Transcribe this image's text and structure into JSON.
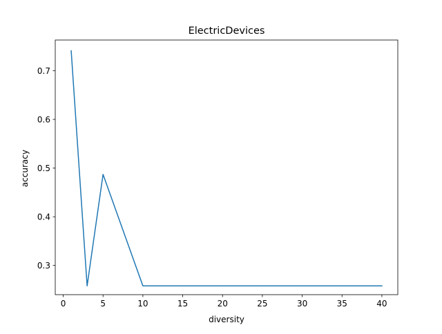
{
  "chart_data": {
    "type": "line",
    "title": "ElectricDevices",
    "xlabel": "diversity",
    "ylabel": "accuracy",
    "xlim": [
      -1,
      42
    ],
    "ylim": [
      0.24,
      0.763
    ],
    "x_ticks": [
      0,
      5,
      10,
      15,
      20,
      25,
      30,
      35,
      40
    ],
    "y_ticks": [
      0.3,
      0.4,
      0.5,
      0.6,
      0.7
    ],
    "grid": false,
    "legend": "none",
    "series": [
      {
        "color": "#1f77b4",
        "x": [
          1,
          3,
          5,
          10,
          40
        ],
        "y": [
          0.741,
          0.258,
          0.487,
          0.258,
          0.258
        ]
      }
    ]
  }
}
